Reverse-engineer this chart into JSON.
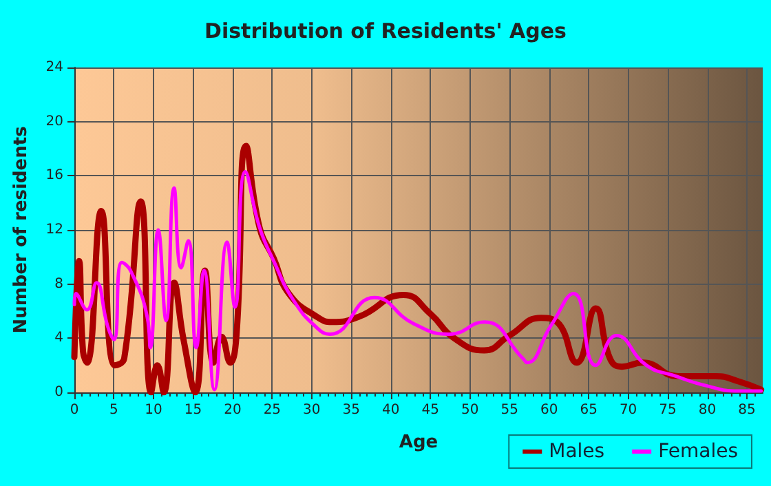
{
  "chart_data": {
    "type": "line",
    "title": "Distribution of Residents' Ages",
    "xlabel": "Age",
    "ylabel": "Number of residents",
    "xlim": [
      0,
      87
    ],
    "xticks": [
      0,
      5,
      10,
      15,
      20,
      25,
      30,
      35,
      40,
      45,
      50,
      55,
      60,
      65,
      70,
      75,
      80,
      85
    ],
    "ylim": [
      0,
      24
    ],
    "yticks": [
      0,
      4,
      8,
      12,
      16,
      20,
      24
    ],
    "grid": true,
    "legend": "bottom",
    "marker": "none",
    "line_style": "solid",
    "series": [
      {
        "name": "Males",
        "color": "#aa0000",
        "x": [
          0,
          0.6,
          1.1,
          1.6,
          3.4,
          5.1,
          6.3,
          8.4,
          9.7,
          10.5,
          11.3,
          12.6,
          13.8,
          15.3,
          16.5,
          17.6,
          18.6,
          19.7,
          20.5,
          21.7,
          23.4,
          25.2,
          27.1,
          30.6,
          32.6,
          36,
          41.6,
          45,
          48,
          51.8,
          55,
          59,
          61,
          63.5,
          65.9,
          67.7,
          69.2,
          71.8,
          76.3,
          81,
          84,
          86.8
        ],
        "values": [
          2.6,
          9.7,
          3,
          2.2,
          13.4,
          2,
          2.5,
          14.1,
          0,
          2,
          0,
          8.1,
          3.9,
          0,
          9,
          2.2,
          4.1,
          2.2,
          4.3,
          18.2,
          12.2,
          9.9,
          7.3,
          5.6,
          5.2,
          5.6,
          7.2,
          5.8,
          4,
          3.1,
          4.2,
          5.5,
          5.2,
          2.2,
          6.2,
          2.5,
          1.9,
          2.2,
          1.2,
          1.2,
          0.8,
          0.2
        ]
      },
      {
        "name": "Females",
        "color": "#ff00ff",
        "x": [
          0,
          0.2,
          1.6,
          2.8,
          4.2,
          5,
          6,
          7.1,
          9.2,
          9.6,
          10.6,
          11.6,
          12.6,
          13.5,
          14.4,
          15.4,
          16.4,
          17.7,
          19.3,
          20.3,
          21.6,
          23.4,
          25.2,
          27.7,
          30.6,
          32.3,
          37.9,
          42.8,
          47.4,
          51.8,
          56.7,
          57.2,
          60.2,
          63.1,
          65.9,
          68.5,
          72.3,
          76,
          79.8,
          83.9,
          86.8
        ],
        "values": [
          6.5,
          7.3,
          6.1,
          8.1,
          4.9,
          3.9,
          9.6,
          9,
          5.6,
          3.3,
          12,
          5.3,
          15.1,
          9.2,
          11.2,
          3.3,
          9,
          0.2,
          11.1,
          6.3,
          16.3,
          12.2,
          9.7,
          6.8,
          4.8,
          4.3,
          7,
          5.1,
          4.3,
          5.2,
          2.5,
          2.2,
          4.9,
          7.3,
          2,
          4.2,
          2,
          1.2,
          0.5,
          0.1,
          0.1
        ]
      }
    ]
  }
}
